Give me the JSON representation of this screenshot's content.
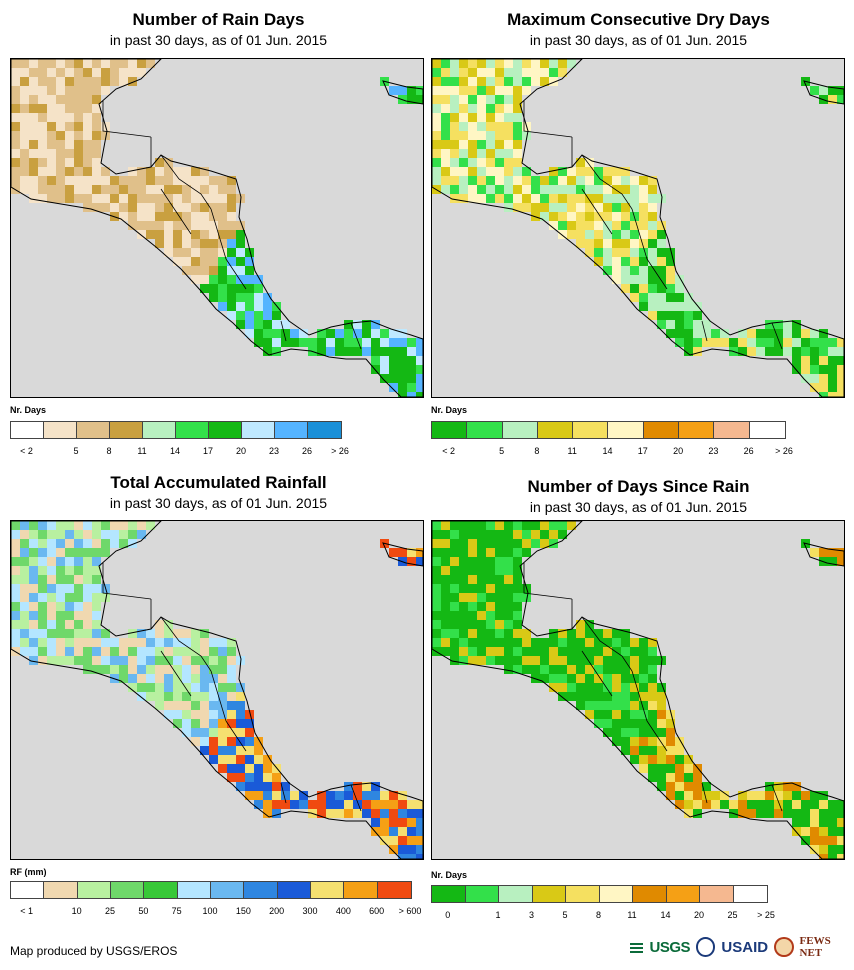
{
  "panels": [
    {
      "id": "rain-days",
      "title": "Number of Rain Days",
      "subtitle": "in past 30 days, as of 01 Jun. 2015",
      "legend_title": "Nr. Days",
      "legend_colors": [
        "#ffffff",
        "#f5e3c8",
        "#e0c08a",
        "#c9a040",
        "#b8f0c0",
        "#33e04a",
        "#14b814",
        "#bfe9ff",
        "#55b4ff",
        "#1a90d8"
      ],
      "legend_ticks": [
        "< 2",
        "5",
        "8",
        "11",
        "14",
        "17",
        "20",
        "23",
        "26",
        "> 26"
      ],
      "land_palette": [
        "#f5e3c8",
        "#e0c08a",
        "#c9a040",
        "#f5e3c8",
        "#e0c08a"
      ],
      "south_palette": [
        "#14b814",
        "#33e04a",
        "#55b4ff",
        "#bfe9ff",
        "#14b814"
      ]
    },
    {
      "id": "max-dry-days",
      "title": "Maximum Consecutive Dry Days",
      "subtitle": "in past 30 days, as of 01 Jun. 2015",
      "legend_title": "Nr. Days",
      "legend_colors": [
        "#14b814",
        "#33e04a",
        "#b8f0c0",
        "#d9c916",
        "#f5e060",
        "#fff6c4",
        "#e08a00",
        "#f5a015",
        "#f5b890",
        "#ffffff"
      ],
      "legend_ticks": [
        "< 2",
        "5",
        "8",
        "11",
        "14",
        "17",
        "20",
        "23",
        "26",
        "> 26"
      ],
      "land_palette": [
        "#d9c916",
        "#f5e060",
        "#fff6c4",
        "#b8f0c0",
        "#33e04a"
      ],
      "south_palette": [
        "#14b814",
        "#33e04a",
        "#14b814",
        "#b8f0c0",
        "#f5e060"
      ]
    },
    {
      "id": "total-rainfall",
      "title": "Total Accumulated Rainfall",
      "subtitle": "in past 30 days, as of 01 Jun. 2015",
      "legend_title": "RF (mm)",
      "legend_colors": [
        "#ffffff",
        "#f0d8b0",
        "#b8f0a0",
        "#6fd86a",
        "#38c838",
        "#b4e6ff",
        "#6ab8f0",
        "#2f86e0",
        "#1a5ad8",
        "#f5e070",
        "#f5a015",
        "#f04a10"
      ],
      "legend_ticks": [
        "< 1",
        "10",
        "25",
        "50",
        "75",
        "100",
        "150",
        "200",
        "300",
        "400",
        "600",
        "> 600"
      ],
      "land_palette": [
        "#b8f0a0",
        "#6fd86a",
        "#b4e6ff",
        "#6ab8f0",
        "#f0d8b0"
      ],
      "south_palette": [
        "#f5a015",
        "#f5e070",
        "#2f86e0",
        "#1a5ad8",
        "#f04a10"
      ]
    },
    {
      "id": "days-since-rain",
      "title": "Number of Days Since Rain",
      "subtitle": "in past 30 days, as of 01 Jun. 2015",
      "legend_title": "Nr. Days",
      "legend_colors": [
        "#14b814",
        "#33e04a",
        "#b8f0c0",
        "#d9c916",
        "#f5e060",
        "#fff6c4",
        "#e08a00",
        "#f5a015",
        "#f5b890",
        "#ffffff"
      ],
      "legend_ticks": [
        "0",
        "1",
        "3",
        "5",
        "8",
        "11",
        "14",
        "20",
        "25",
        "> 25"
      ],
      "land_palette": [
        "#14b814",
        "#14b814",
        "#33e04a",
        "#d9c916",
        "#14b814"
      ],
      "south_palette": [
        "#14b814",
        "#d9c916",
        "#f5e060",
        "#14b814",
        "#e08a00"
      ]
    }
  ],
  "footer": {
    "credit": "Map produced by USGS/EROS",
    "logos": [
      "USGS",
      "USAID",
      "FEWS NET"
    ]
  }
}
